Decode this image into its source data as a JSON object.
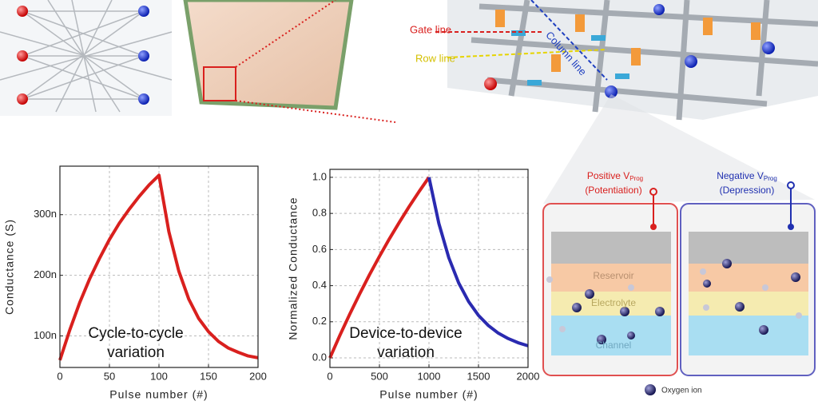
{
  "chart_data": [
    {
      "type": "line",
      "xlabel": "Pulse number (#)",
      "ylabel": "Conductance (S)",
      "annotation": [
        "Cycle-to-cycle",
        "variation"
      ],
      "xlim": [
        0,
        200
      ],
      "xticks": [
        0,
        50,
        100,
        150,
        200
      ],
      "ylim": [
        4.8e-08,
        3.8e-07
      ],
      "yticks": [
        {
          "value": 1e-07,
          "label": "100n"
        },
        {
          "value": 2e-07,
          "label": "200n"
        },
        {
          "value": 3e-07,
          "label": "300n"
        }
      ],
      "grid": true,
      "series": [
        {
          "color": "#d9201e",
          "x": [
            0,
            10,
            20,
            30,
            40,
            50,
            60,
            70,
            80,
            90,
            100,
            110,
            120,
            130,
            140,
            150,
            160,
            170,
            180,
            190,
            200
          ],
          "values": [
            6e-08,
            1.1e-07,
            1.55e-07,
            1.94e-07,
            2.28e-07,
            2.59e-07,
            2.86e-07,
            3.09e-07,
            3.3e-07,
            3.49e-07,
            3.65e-07,
            2.72e-07,
            2.07e-07,
            1.61e-07,
            1.29e-07,
            1.07e-07,
            9.1e-08,
            8e-08,
            7.3e-08,
            6.7e-08,
            6.4e-08
          ]
        }
      ]
    },
    {
      "type": "line",
      "xlabel": "Pulse number (#)",
      "ylabel": "Normalized Conductance",
      "annotation": [
        "Device-to-device",
        "variation"
      ],
      "xlim": [
        0,
        2000
      ],
      "xticks": [
        0,
        500,
        1000,
        1500,
        2000
      ],
      "ylim": [
        -0.053,
        1.044
      ],
      "yticks": [
        {
          "value": 0,
          "label": "0.0"
        },
        0.2,
        0.4,
        0.6,
        0.8,
        {
          "value": 1,
          "label": "1.0"
        }
      ],
      "grid": true,
      "series": [
        {
          "color": "#d9201e",
          "x": [
            0,
            100,
            200,
            300,
            400,
            500,
            600,
            700,
            800,
            900,
            1000
          ],
          "values": [
            0,
            0.124,
            0.242,
            0.354,
            0.461,
            0.562,
            0.659,
            0.75,
            0.838,
            0.921,
            1.0
          ]
        },
        {
          "color": "#2a2ab0",
          "x": [
            1000,
            1100,
            1200,
            1300,
            1400,
            1500,
            1600,
            1700,
            1800,
            1900,
            2000
          ],
          "values": [
            1.0,
            0.744,
            0.555,
            0.415,
            0.312,
            0.235,
            0.179,
            0.137,
            0.107,
            0.084,
            0.067
          ]
        }
      ]
    }
  ],
  "diagram": {
    "crossbar_labels": [
      "Gate line",
      "Row line",
      "Column line"
    ],
    "positive": {
      "label": "Positive V",
      "subscript": "Prog",
      "mode": "(Potentiation)"
    },
    "negative": {
      "label": "Negative V",
      "subscript": "Prog",
      "mode": "(Depression)"
    },
    "layers": [
      "Reservoir",
      "Electrolyte",
      "Channel"
    ],
    "legend": "Oxygen ion"
  }
}
